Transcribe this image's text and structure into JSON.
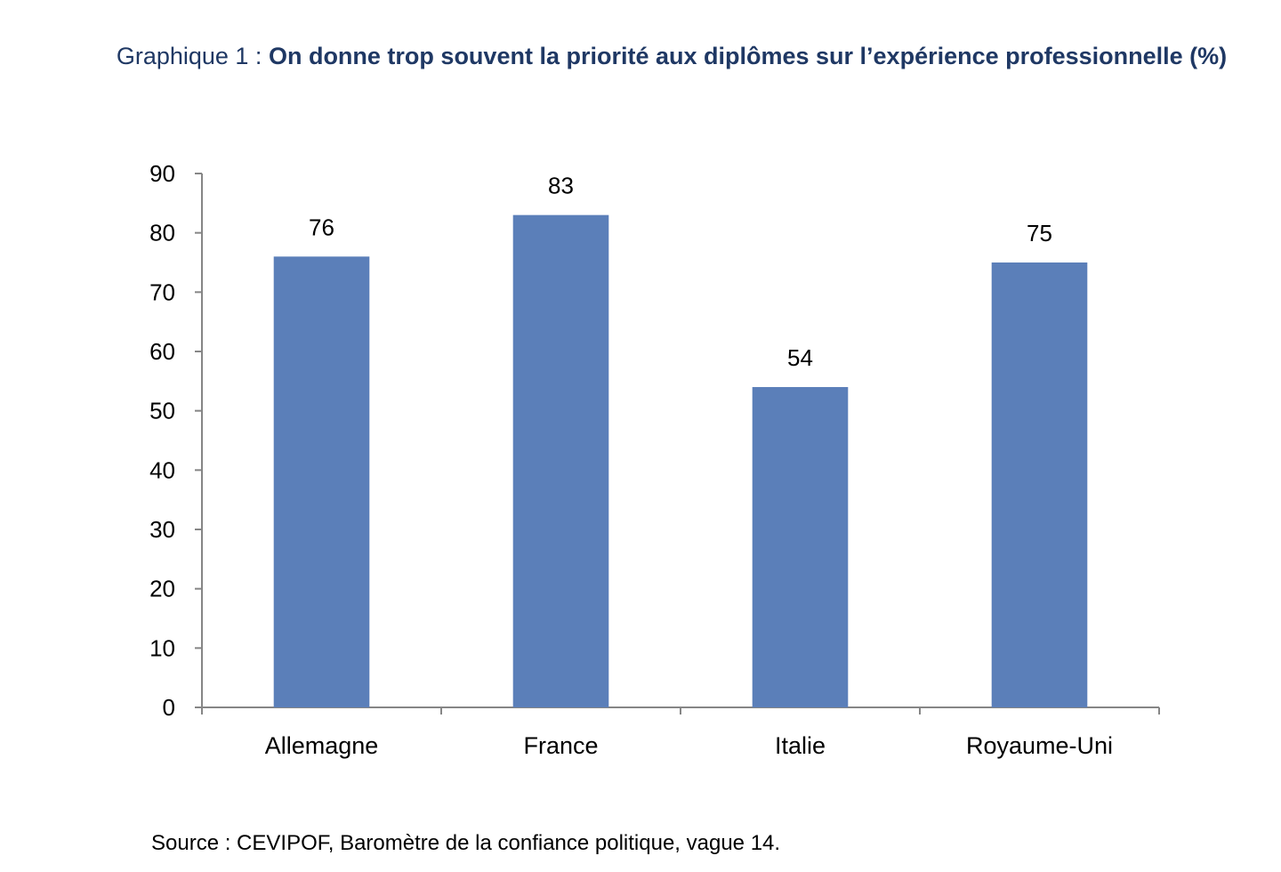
{
  "title": {
    "prefix": "Graphique 1 : ",
    "main": "On donne trop souvent la priorité aux diplômes sur l’expérience professionnelle (%)"
  },
  "chart_data": {
    "type": "bar",
    "categories": [
      "Allemagne",
      "France",
      "Italie",
      "Royaume-Uni"
    ],
    "values": [
      76,
      83,
      54,
      75
    ],
    "ylim": [
      0,
      90
    ],
    "yticks": [
      0,
      10,
      20,
      30,
      40,
      50,
      60,
      70,
      80,
      90
    ],
    "grid": false,
    "legend": "none",
    "data_labels": true,
    "bar_color": "#5b7fb9"
  },
  "source": "Source : CEVIPOF, Baromètre de la confiance politique, vague 14."
}
